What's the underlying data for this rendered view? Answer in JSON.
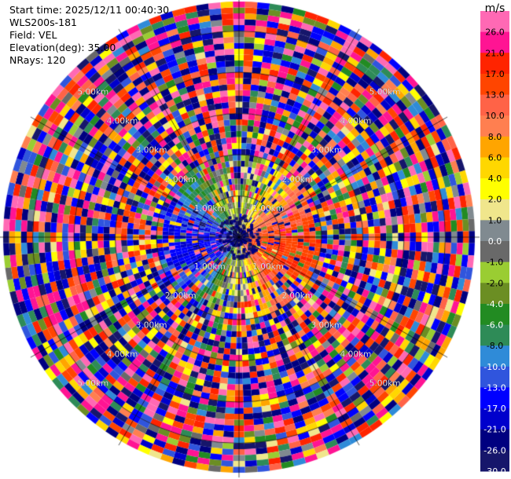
{
  "header": {
    "start_time": "Start time: 2025/12/11 00:40:30",
    "instrument": "WLS200s-181",
    "field": "Field: VEL",
    "elevation": "Elevation(deg): 35.00",
    "nrays": "NRays: 120"
  },
  "chart_data": {
    "type": "heatmap",
    "projection": "polar-ppi",
    "field": "VEL",
    "n_rays": 120,
    "range_rings_km": [
      1.0,
      2.0,
      3.0,
      4.0,
      5.0
    ],
    "range_ring_labels": [
      "1.00km",
      "2.00km",
      "3.00km",
      "4.00km",
      "5.00km"
    ],
    "max_range_km": 5.83,
    "near_field_pattern": {
      "positive_sector_azimuth_deg": [
        20,
        170
      ],
      "negative_sector_azimuth_deg": [
        200,
        340
      ],
      "coherent_range_km": 2.0,
      "beyond_range": "noise"
    },
    "colorbar": {
      "unit": "m/s",
      "tick_labels": [
        "26.0",
        "21.0",
        "17.0",
        "13.0",
        "10.0",
        "8.0",
        "6.0",
        "4.0",
        "2.0",
        "1.0",
        "0.0",
        "-1.0",
        "-2.0",
        "-4.0",
        "-6.0",
        "-8.0",
        "-10.0",
        "-13.0",
        "-17.0",
        "-21.0",
        "-26.0",
        "-30.0"
      ],
      "levels": [
        -30,
        -26,
        -21,
        -17,
        -13,
        -10,
        -8,
        -6,
        -4,
        -2,
        -1,
        0,
        1,
        2,
        4,
        6,
        8,
        10,
        13,
        17,
        21,
        26,
        30
      ],
      "colors": [
        "#16166b",
        "#000080",
        "#0000cc",
        "#0000ff",
        "#3055dd",
        "#2f8bd8",
        "#2e8b57",
        "#228b22",
        "#6b8e23",
        "#9acd32",
        "#696969",
        "#808a90",
        "#f0e68c",
        "#ffff00",
        "#ffd700",
        "#ffa500",
        "#ff7f50",
        "#ff6347",
        "#ff4500",
        "#ff2400",
        "#ff1493",
        "#ff69b4"
      ]
    }
  }
}
